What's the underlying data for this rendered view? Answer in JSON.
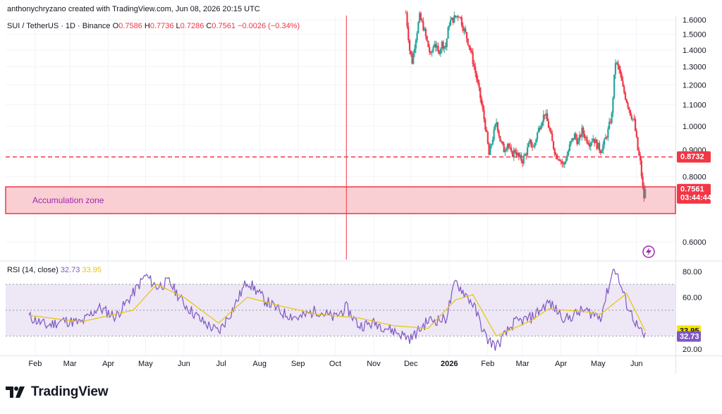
{
  "header": {
    "credit": "anthonychryzano created with TradingView.com, Jun 08, 2026 20:15 UTC",
    "symbol": "SUI / TetherUS · 1D · Binance",
    "open_label": "O",
    "open": "0.7586",
    "high_label": "H",
    "high": "0.7736",
    "low_label": "L",
    "low": "0.7286",
    "close_label": "C",
    "close": "0.7561",
    "change": "−0.0026 (−0.34%)"
  },
  "rsi_legend": {
    "label": "RSI (14, close)",
    "rsi": "32.73",
    "ma": "33.95"
  },
  "brand": {
    "name": "TradingView"
  },
  "colors": {
    "up": "#26a69a",
    "down": "#f23645",
    "rsi": "#7e57c2",
    "rsi_ma": "#e6c700",
    "zone_fill": "#f9cfd3",
    "zone_border": "#f23645",
    "rsi_band": "#ede7f6",
    "grid": "#f0f3fa"
  },
  "chart_data": [
    {
      "type": "candlestick",
      "title": "SUI / TetherUS · 1D · Binance",
      "x_axis_labels": [
        "Feb",
        "Mar",
        "Apr",
        "May",
        "Jun",
        "Jul",
        "Aug",
        "Sep",
        "Oct",
        "Nov",
        "Dec",
        "2026",
        "Feb",
        "Mar",
        "Apr",
        "May",
        "Jun"
      ],
      "y_axis_ticks": [
        "1.6000",
        "1.5000",
        "1.4000",
        "1.3000",
        "1.2000",
        "1.1000",
        "1.0000",
        "0.9000",
        "0.8000",
        "0.6000"
      ],
      "ylim": [
        0.555,
        1.63
      ],
      "price_points": [
        {
          "x": "2025-11-27",
          "y": 1.65
        },
        {
          "x": "2025-11-30",
          "y": 1.4
        },
        {
          "x": "2025-12-02",
          "y": 1.33
        },
        {
          "x": "2025-12-05",
          "y": 1.48
        },
        {
          "x": "2025-12-08",
          "y": 1.62
        },
        {
          "x": "2025-12-11",
          "y": 1.55
        },
        {
          "x": "2025-12-14",
          "y": 1.45
        },
        {
          "x": "2025-12-17",
          "y": 1.36
        },
        {
          "x": "2025-12-20",
          "y": 1.45
        },
        {
          "x": "2025-12-23",
          "y": 1.38
        },
        {
          "x": "2025-12-26",
          "y": 1.44
        },
        {
          "x": "2025-12-29",
          "y": 1.42
        },
        {
          "x": "2026-01-01",
          "y": 1.58
        },
        {
          "x": "2026-01-06",
          "y": 1.62
        },
        {
          "x": "2026-01-09",
          "y": 1.64
        },
        {
          "x": "2026-01-12",
          "y": 1.55
        },
        {
          "x": "2026-01-15",
          "y": 1.48
        },
        {
          "x": "2026-01-18",
          "y": 1.4
        },
        {
          "x": "2026-01-21",
          "y": 1.3
        },
        {
          "x": "2026-01-24",
          "y": 1.2
        },
        {
          "x": "2026-01-27",
          "y": 1.1
        },
        {
          "x": "2026-01-30",
          "y": 1.0
        },
        {
          "x": "2026-02-02",
          "y": 0.88
        },
        {
          "x": "2026-02-05",
          "y": 0.95
        },
        {
          "x": "2026-02-08",
          "y": 1.02
        },
        {
          "x": "2026-02-11",
          "y": 0.94
        },
        {
          "x": "2026-02-14",
          "y": 0.9
        },
        {
          "x": "2026-02-17",
          "y": 0.93
        },
        {
          "x": "2026-02-20",
          "y": 0.88
        },
        {
          "x": "2026-02-23",
          "y": 0.9
        },
        {
          "x": "2026-02-26",
          "y": 0.87
        },
        {
          "x": "2026-03-01",
          "y": 0.86
        },
        {
          "x": "2026-03-04",
          "y": 0.89
        },
        {
          "x": "2026-03-07",
          "y": 0.93
        },
        {
          "x": "2026-03-10",
          "y": 0.91
        },
        {
          "x": "2026-03-13",
          "y": 0.97
        },
        {
          "x": "2026-03-16",
          "y": 1.02
        },
        {
          "x": "2026-03-19",
          "y": 1.06
        },
        {
          "x": "2026-03-22",
          "y": 1.0
        },
        {
          "x": "2026-03-25",
          "y": 0.93
        },
        {
          "x": "2026-03-28",
          "y": 0.88
        },
        {
          "x": "2026-03-31",
          "y": 0.87
        },
        {
          "x": "2026-04-03",
          "y": 0.84
        },
        {
          "x": "2026-04-06",
          "y": 0.88
        },
        {
          "x": "2026-04-09",
          "y": 0.93
        },
        {
          "x": "2026-04-12",
          "y": 0.96
        },
        {
          "x": "2026-04-15",
          "y": 0.93
        },
        {
          "x": "2026-04-18",
          "y": 0.98
        },
        {
          "x": "2026-04-21",
          "y": 0.95
        },
        {
          "x": "2026-04-24",
          "y": 0.93
        },
        {
          "x": "2026-04-27",
          "y": 0.95
        },
        {
          "x": "2026-04-30",
          "y": 0.92
        },
        {
          "x": "2026-05-03",
          "y": 0.9
        },
        {
          "x": "2026-05-06",
          "y": 0.93
        },
        {
          "x": "2026-05-09",
          "y": 0.98
        },
        {
          "x": "2026-05-12",
          "y": 1.05
        },
        {
          "x": "2026-05-15",
          "y": 1.33
        },
        {
          "x": "2026-05-18",
          "y": 1.28
        },
        {
          "x": "2026-05-21",
          "y": 1.18
        },
        {
          "x": "2026-05-24",
          "y": 1.12
        },
        {
          "x": "2026-05-27",
          "y": 1.06
        },
        {
          "x": "2026-05-30",
          "y": 1.02
        },
        {
          "x": "2026-06-02",
          "y": 0.9
        },
        {
          "x": "2026-06-04",
          "y": 0.85
        },
        {
          "x": "2026-06-06",
          "y": 0.76
        },
        {
          "x": "2026-06-07",
          "y": 0.73
        },
        {
          "x": "2026-06-08",
          "y": 0.7561
        }
      ],
      "horizontal_level": {
        "value": 0.8732,
        "label": "0.8732",
        "style": "dashed"
      },
      "zone": {
        "label": "Accumulation zone",
        "from": 0.68,
        "to": 0.765
      },
      "last_price": {
        "value": 0.7561,
        "label": "0.7561",
        "countdown": "03:44:44"
      },
      "vertical_marker_date": "2025-10-10"
    },
    {
      "type": "line",
      "title": "RSI (14, close)",
      "y_axis_ticks": [
        "80.00",
        "60.00",
        "20.00"
      ],
      "ylim": [
        15,
        87
      ],
      "bands": [
        30,
        50,
        70
      ],
      "series": [
        {
          "name": "RSI",
          "points": [
            {
              "x": "2025-01-27",
              "y": 45
            },
            {
              "x": "2025-02-10",
              "y": 38
            },
            {
              "x": "2025-02-24",
              "y": 42
            },
            {
              "x": "2025-03-10",
              "y": 40
            },
            {
              "x": "2025-03-24",
              "y": 52
            },
            {
              "x": "2025-04-07",
              "y": 45
            },
            {
              "x": "2025-04-21",
              "y": 63
            },
            {
              "x": "2025-05-01",
              "y": 77
            },
            {
              "x": "2025-05-10",
              "y": 68
            },
            {
              "x": "2025-05-20",
              "y": 72
            },
            {
              "x": "2025-06-01",
              "y": 55
            },
            {
              "x": "2025-06-15",
              "y": 42
            },
            {
              "x": "2025-06-29",
              "y": 33
            },
            {
              "x": "2025-07-10",
              "y": 50
            },
            {
              "x": "2025-07-22",
              "y": 73
            },
            {
              "x": "2025-08-05",
              "y": 58
            },
            {
              "x": "2025-08-19",
              "y": 48
            },
            {
              "x": "2025-09-02",
              "y": 44
            },
            {
              "x": "2025-09-16",
              "y": 50
            },
            {
              "x": "2025-09-30",
              "y": 44
            },
            {
              "x": "2025-10-10",
              "y": 52
            },
            {
              "x": "2025-10-20",
              "y": 38
            },
            {
              "x": "2025-11-03",
              "y": 40
            },
            {
              "x": "2025-11-17",
              "y": 34
            },
            {
              "x": "2025-12-01",
              "y": 28
            },
            {
              "x": "2025-12-15",
              "y": 42
            },
            {
              "x": "2025-12-29",
              "y": 43
            },
            {
              "x": "2026-01-06",
              "y": 72
            },
            {
              "x": "2026-01-20",
              "y": 55
            },
            {
              "x": "2026-01-31",
              "y": 28
            },
            {
              "x": "2026-02-08",
              "y": 22
            },
            {
              "x": "2026-02-22",
              "y": 40
            },
            {
              "x": "2026-03-08",
              "y": 44
            },
            {
              "x": "2026-03-22",
              "y": 56
            },
            {
              "x": "2026-04-05",
              "y": 43
            },
            {
              "x": "2026-04-19",
              "y": 50
            },
            {
              "x": "2026-05-03",
              "y": 45
            },
            {
              "x": "2026-05-14",
              "y": 84
            },
            {
              "x": "2026-05-24",
              "y": 55
            },
            {
              "x": "2026-06-03",
              "y": 35
            },
            {
              "x": "2026-06-07",
              "y": 29
            },
            {
              "x": "2026-06-08",
              "y": 32.73
            }
          ]
        },
        {
          "name": "RSI-based MA",
          "points": [
            {
              "x": "2025-01-27",
              "y": 46
            },
            {
              "x": "2025-03-10",
              "y": 41
            },
            {
              "x": "2025-04-21",
              "y": 50
            },
            {
              "x": "2025-05-10",
              "y": 70
            },
            {
              "x": "2025-06-01",
              "y": 60
            },
            {
              "x": "2025-06-29",
              "y": 40
            },
            {
              "x": "2025-07-22",
              "y": 60
            },
            {
              "x": "2025-08-19",
              "y": 53
            },
            {
              "x": "2025-09-16",
              "y": 47
            },
            {
              "x": "2025-10-20",
              "y": 44
            },
            {
              "x": "2025-11-17",
              "y": 38
            },
            {
              "x": "2025-12-15",
              "y": 36
            },
            {
              "x": "2026-01-06",
              "y": 58
            },
            {
              "x": "2026-01-20",
              "y": 62
            },
            {
              "x": "2026-02-08",
              "y": 30
            },
            {
              "x": "2026-03-08",
              "y": 42
            },
            {
              "x": "2026-03-22",
              "y": 51
            },
            {
              "x": "2026-04-19",
              "y": 49
            },
            {
              "x": "2026-05-03",
              "y": 47
            },
            {
              "x": "2026-05-24",
              "y": 63
            },
            {
              "x": "2026-06-08",
              "y": 33.95
            }
          ]
        }
      ]
    }
  ]
}
